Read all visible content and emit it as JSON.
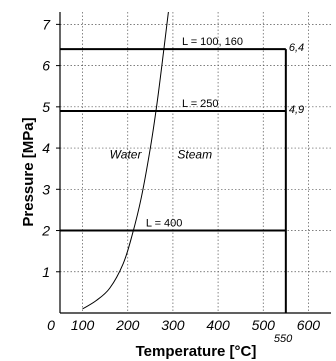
{
  "chart_data": {
    "type": "line",
    "xlabel": "Temperature [°C]",
    "ylabel": "Pressure [MPa]",
    "xlim": [
      50,
      650
    ],
    "ylim": [
      0,
      7.3
    ],
    "xticks": [
      0,
      100,
      200,
      300,
      400,
      500,
      600
    ],
    "xtick_labels": [
      "0",
      "100",
      "200",
      "300",
      "400",
      "500",
      "600"
    ],
    "yticks": [
      1,
      2,
      3,
      4,
      5,
      6,
      7
    ],
    "ytick_labels": [
      "1",
      "2",
      "3",
      "4",
      "5",
      "6",
      "7"
    ],
    "grid": true,
    "saturation_curve": {
      "x": [
        100,
        130,
        160,
        190,
        210,
        230,
        250,
        265,
        280,
        290
      ],
      "y": [
        0.1,
        0.3,
        0.6,
        1.2,
        1.9,
        2.8,
        4.0,
        5.1,
        6.4,
        7.3
      ]
    },
    "limit_lines": [
      {
        "label": "L = 100, 160",
        "pressure": 6.4,
        "pressure_label": "6,4"
      },
      {
        "label": "L = 250",
        "pressure": 4.9,
        "pressure_label": "4,9"
      },
      {
        "label": "L = 400",
        "pressure": 2.0
      }
    ],
    "max_temperature": 550,
    "max_temperature_label": "550",
    "regions": [
      {
        "name": "Water",
        "x": 160,
        "y": 3.75
      },
      {
        "name": "Steam",
        "x": 310,
        "y": 3.75
      }
    ]
  }
}
